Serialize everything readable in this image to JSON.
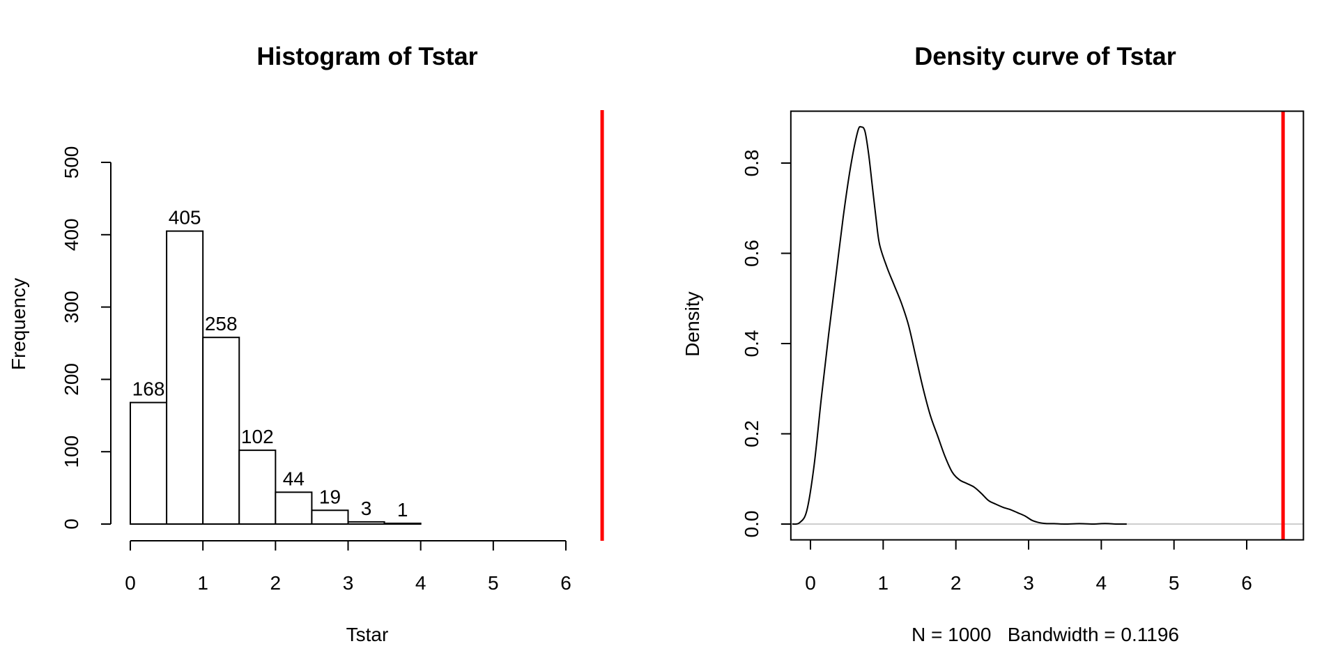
{
  "chart_data": [
    {
      "type": "bar",
      "title": "Histogram of Tstar",
      "xlabel": "Tstar",
      "ylabel": "Frequency",
      "bin_edges": [
        0,
        0.5,
        1,
        1.5,
        2,
        2.5,
        3,
        3.5,
        4
      ],
      "values": [
        168,
        405,
        258,
        102,
        44,
        19,
        3,
        1
      ],
      "data_labels": [
        "168",
        "405",
        "258",
        "102",
        "44",
        "19",
        "3",
        "1"
      ],
      "xlim": [
        0,
        6.5
      ],
      "ylim": [
        0,
        500
      ],
      "x_ticks": [
        0,
        1,
        2,
        3,
        4,
        5,
        6
      ],
      "x_tick_labels": [
        "0",
        "1",
        "2",
        "3",
        "4",
        "5",
        "6"
      ],
      "y_ticks": [
        0,
        100,
        200,
        300,
        400,
        500
      ],
      "y_tick_labels": [
        "0",
        "100",
        "200",
        "300",
        "400",
        "500"
      ],
      "reference_line": {
        "x": 6.5,
        "color": "#ff0000"
      },
      "bar_fill": "#ffffff",
      "bar_stroke": "#000000",
      "grid": false
    },
    {
      "type": "line",
      "title": "Density curve of Tstar",
      "xlabel": "N = 1000   Bandwidth = 0.1196",
      "ylabel": "Density",
      "x": [
        -0.25,
        -0.15,
        -0.05,
        0.05,
        0.15,
        0.25,
        0.35,
        0.45,
        0.55,
        0.65,
        0.7,
        0.75,
        0.8,
        0.85,
        0.9,
        0.95,
        1.05,
        1.15,
        1.25,
        1.35,
        1.45,
        1.55,
        1.65,
        1.75,
        1.85,
        1.95,
        2.05,
        2.15,
        2.25,
        2.35,
        2.45,
        2.55,
        2.65,
        2.75,
        2.85,
        2.95,
        3.05,
        3.15,
        3.25,
        3.35,
        3.5,
        3.7,
        3.9,
        4.0,
        4.1,
        4.2,
        4.35
      ],
      "y": [
        0.0,
        0.003,
        0.03,
        0.13,
        0.28,
        0.42,
        0.55,
        0.68,
        0.79,
        0.87,
        0.88,
        0.87,
        0.82,
        0.75,
        0.68,
        0.62,
        0.57,
        0.53,
        0.49,
        0.44,
        0.37,
        0.3,
        0.24,
        0.195,
        0.15,
        0.115,
        0.098,
        0.09,
        0.082,
        0.068,
        0.052,
        0.044,
        0.037,
        0.032,
        0.025,
        0.018,
        0.008,
        0.003,
        0.001,
        0.001,
        0.0,
        0.001,
        0.0,
        0.001,
        0.001,
        0.0,
        0.0
      ],
      "xlim": [
        -0.27,
        6.78
      ],
      "ylim": [
        -0.035,
        0.915
      ],
      "x_ticks": [
        0,
        1,
        2,
        3,
        4,
        5,
        6
      ],
      "x_tick_labels": [
        "0",
        "1",
        "2",
        "3",
        "4",
        "5",
        "6"
      ],
      "y_ticks": [
        0,
        0.2,
        0.4,
        0.6,
        0.8
      ],
      "y_tick_labels": [
        "0.0",
        "0.2",
        "0.4",
        "0.6",
        "0.8"
      ],
      "baseline": {
        "y": 0,
        "color": "#bebebe"
      },
      "reference_line": {
        "x": 6.5,
        "color": "#ff0000"
      },
      "line_color": "#000000",
      "grid": false,
      "box": true
    }
  ]
}
